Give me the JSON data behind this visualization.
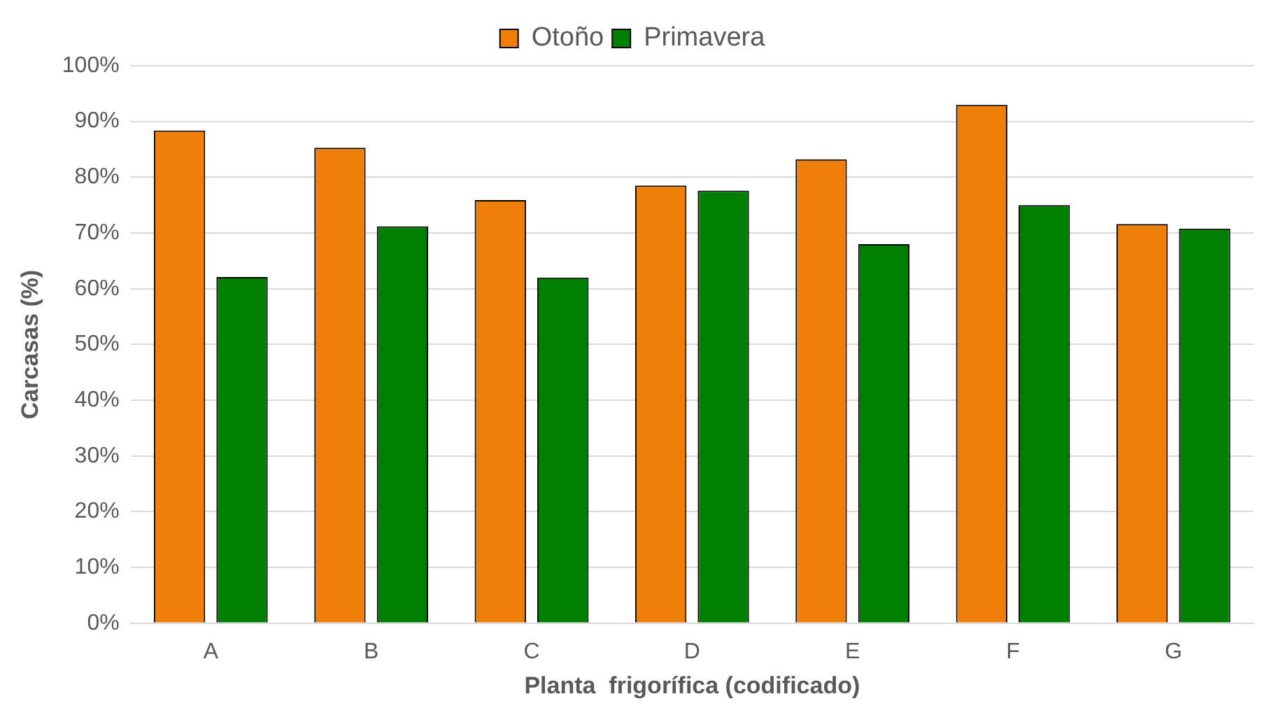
{
  "chart_data": {
    "type": "bar",
    "xlabel": "Planta  frigorífica (codificado)",
    "ylabel": "Carcasas (%)",
    "categories": [
      "A",
      "B",
      "C",
      "D",
      "E",
      "F",
      "G"
    ],
    "series": [
      {
        "name": "Otoño",
        "color": "#f07f09",
        "values": [
          88.4,
          85.3,
          75.9,
          78.5,
          83.2,
          93.0,
          71.6
        ]
      },
      {
        "name": "Primavera",
        "color": "#008000",
        "values": [
          62.1,
          71.2,
          62.0,
          77.6,
          68.0,
          75.0,
          70.8
        ]
      }
    ],
    "ylim": [
      0,
      100
    ],
    "yticks": [
      {
        "value": 0,
        "label": "0%"
      },
      {
        "value": 10,
        "label": "10%"
      },
      {
        "value": 20,
        "label": "20%"
      },
      {
        "value": 30,
        "label": "30%"
      },
      {
        "value": 40,
        "label": "40%"
      },
      {
        "value": 50,
        "label": "50%"
      },
      {
        "value": 60,
        "label": "60%"
      },
      {
        "value": 70,
        "label": "70%"
      },
      {
        "value": 80,
        "label": "80%"
      },
      {
        "value": 90,
        "label": "90%"
      },
      {
        "value": 100,
        "label": "100%"
      }
    ],
    "grid": "y",
    "legend": "top"
  }
}
